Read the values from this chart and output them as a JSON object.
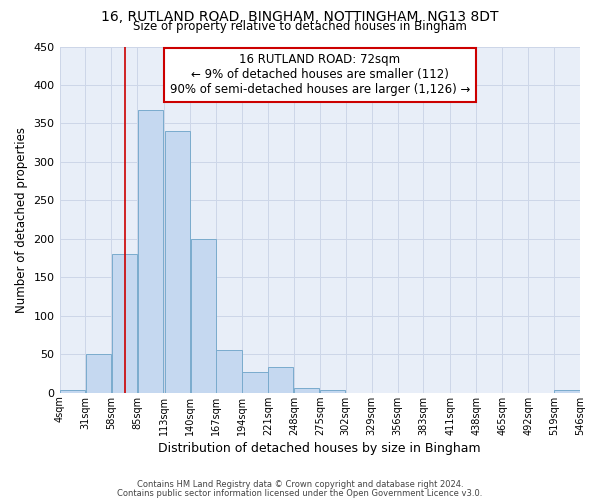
{
  "title_line1": "16, RUTLAND ROAD, BINGHAM, NOTTINGHAM, NG13 8DT",
  "title_line2": "Size of property relative to detached houses in Bingham",
  "xlabel": "Distribution of detached houses by size in Bingham",
  "ylabel": "Number of detached properties",
  "bar_left_edges": [
    4,
    31,
    58,
    85,
    113,
    140,
    167,
    194,
    221,
    248,
    275,
    302,
    329,
    356,
    383,
    411,
    438,
    465,
    492,
    519
  ],
  "bar_heights": [
    4,
    50,
    180,
    367,
    340,
    200,
    55,
    27,
    33,
    6,
    4,
    0,
    0,
    0,
    0,
    0,
    0,
    0,
    0,
    4
  ],
  "bin_width": 27,
  "bar_color": "#c5d8f0",
  "bar_edge_color": "#7aabcd",
  "property_size": 72,
  "vline_color": "#cc0000",
  "annotation_text": "16 RUTLAND ROAD: 72sqm\n← 9% of detached houses are smaller (112)\n90% of semi-detached houses are larger (1,126) →",
  "annotation_box_color": "#ffffff",
  "annotation_box_edge_color": "#cc0000",
  "xlim_left": 4,
  "xlim_right": 546,
  "ylim_top": 450,
  "yticks": [
    0,
    50,
    100,
    150,
    200,
    250,
    300,
    350,
    400,
    450
  ],
  "tick_labels": [
    "4sqm",
    "31sqm",
    "58sqm",
    "85sqm",
    "113sqm",
    "140sqm",
    "167sqm",
    "194sqm",
    "221sqm",
    "248sqm",
    "275sqm",
    "302sqm",
    "329sqm",
    "356sqm",
    "383sqm",
    "411sqm",
    "438sqm",
    "465sqm",
    "492sqm",
    "519sqm",
    "546sqm"
  ],
  "tick_positions": [
    4,
    31,
    58,
    85,
    113,
    140,
    167,
    194,
    221,
    248,
    275,
    302,
    329,
    356,
    383,
    411,
    438,
    465,
    492,
    519,
    546
  ],
  "footer_line1": "Contains HM Land Registry data © Crown copyright and database right 2024.",
  "footer_line2": "Contains public sector information licensed under the Open Government Licence v3.0.",
  "grid_color": "#cdd6e8",
  "background_color": "#e8eef8"
}
